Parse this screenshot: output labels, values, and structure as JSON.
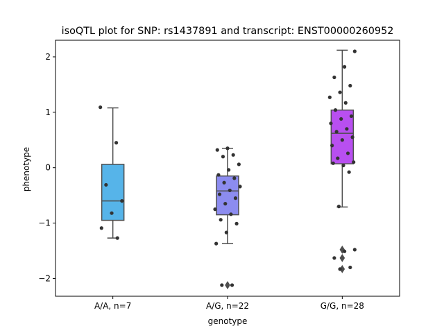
{
  "chart_data": {
    "type": "box",
    "title": "isoQTL plot for SNP: rs1437891 and transcript: ENST00000260952",
    "xlabel": "genotype",
    "ylabel": "phenotype",
    "ylim": [
      -2.32,
      2.3
    ],
    "yticks": [
      -2,
      -1,
      0,
      1,
      2
    ],
    "yticklabels": [
      "−2",
      "−1",
      "0",
      "1",
      "2"
    ],
    "grid": false,
    "categories": [
      "A/A, n=7",
      "A/G, n=22",
      "G/G, n=28"
    ],
    "colors": [
      "#56b4e9",
      "#8c8cf0",
      "#b84ff0"
    ],
    "boxes": [
      {
        "q1": -0.95,
        "median": -0.6,
        "q3": 0.06,
        "whisker_low": -1.27,
        "whisker_high": 1.08,
        "outliers": []
      },
      {
        "q1": -0.85,
        "median": -0.42,
        "q3": -0.15,
        "whisker_low": -1.37,
        "whisker_high": 0.35,
        "outliers": [
          -2.12
        ]
      },
      {
        "q1": 0.07,
        "median": 0.62,
        "q3": 1.04,
        "whisker_low": -0.71,
        "whisker_high": 2.12,
        "outliers": [
          -1.48,
          -1.63,
          -1.83
        ]
      }
    ],
    "points": [
      [
        1.09,
        0.45,
        -0.31,
        -0.6,
        -0.82,
        -1.09,
        -1.27
      ],
      [
        0.35,
        0.32,
        0.23,
        0.2,
        0.06,
        -0.04,
        -0.13,
        -0.19,
        -0.27,
        -0.34,
        -0.41,
        -0.48,
        -0.55,
        -0.65,
        -0.75,
        -0.84,
        -0.94,
        -1.01,
        -1.17,
        -1.37,
        -2.12,
        -2.12
      ],
      [
        2.1,
        1.82,
        1.63,
        1.48,
        1.36,
        1.27,
        1.17,
        1.04,
        0.93,
        0.88,
        0.8,
        0.7,
        0.65,
        0.55,
        0.5,
        0.4,
        0.26,
        0.17,
        0.1,
        0.04,
        0.08,
        -0.08,
        -0.7,
        -1.48,
        -1.51,
        -1.63,
        -1.8,
        -1.83
      ]
    ]
  }
}
